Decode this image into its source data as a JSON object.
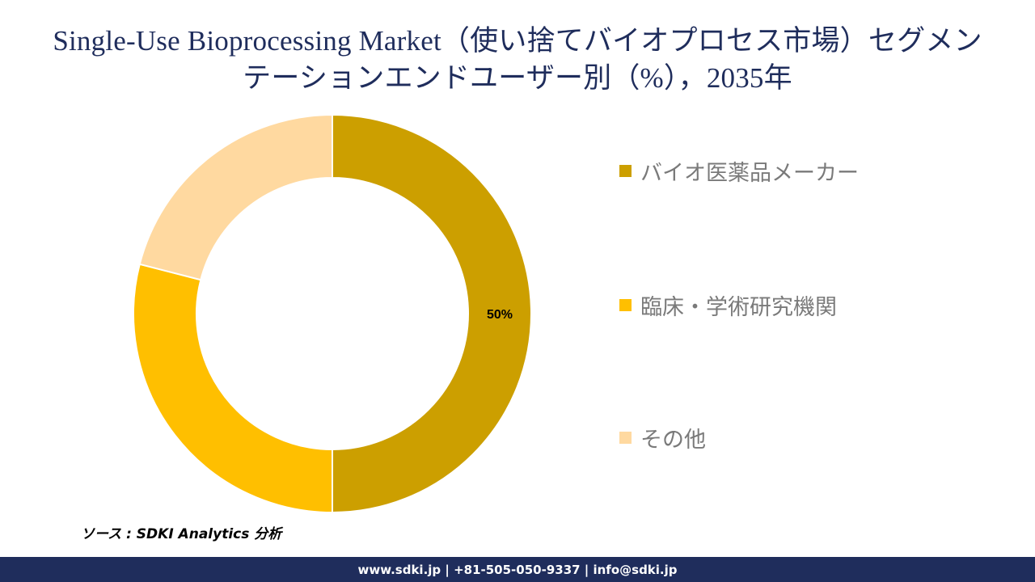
{
  "title": {
    "line1": "Single-Use Bioprocessing Market（使い捨てバイオプロセス市場）セグメン",
    "line2": "テーションエンドユーザー別（%），2035年"
  },
  "chart_data": {
    "type": "pie",
    "style": "donut",
    "categories": [
      "バイオ医薬品メーカー",
      "臨床・学術研究機関",
      "その他"
    ],
    "values": [
      50,
      29,
      21
    ],
    "colors": [
      "#cc9f00",
      "#ffbf00",
      "#ffd9a0"
    ],
    "data_labels": [
      "50%",
      "",
      ""
    ],
    "legend_position": "right"
  },
  "source": "ソース : SDKI Analytics 分析",
  "footer": "www.sdki.jp | +81-505-050-9337 | info@sdki.jp"
}
